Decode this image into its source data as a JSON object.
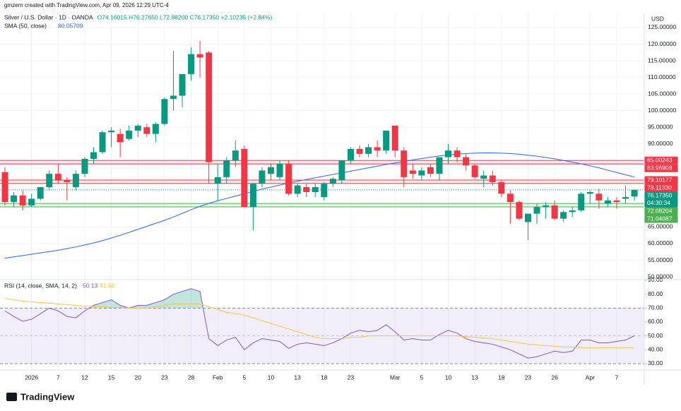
{
  "header": "gmzern created with TradingView.com, Apr 09, 2026 12:29 UTC-4",
  "currency": "USD",
  "logo": "TradingView",
  "chart_data": [
    {
      "type": "candlestick",
      "title": "Silver / U.S. Dollar · 1D · OANDA",
      "ohlc_text": "O74.16015 H76.27650 L72.88200 C76.17350 +2.10235 (+2.84%)",
      "categories": [
        null,
        null,
        null,
        "2026",
        null,
        null,
        "7",
        null,
        null,
        "12",
        null,
        null,
        "15",
        null,
        null,
        "20",
        null,
        null,
        "23",
        null,
        null,
        "28",
        null,
        null,
        "Feb",
        null,
        null,
        "5",
        null,
        null,
        "10",
        null,
        null,
        "13",
        null,
        null,
        "18",
        null,
        null,
        "23",
        null,
        null,
        null,
        null,
        "Mar",
        null,
        null,
        "5",
        null,
        null,
        "10",
        null,
        null,
        "13",
        null,
        null,
        "18",
        null,
        null,
        "23",
        null,
        null,
        "26",
        null,
        null,
        null,
        "Apr",
        null,
        null,
        "7",
        null,
        null
      ],
      "open": [
        81.5,
        72.5,
        74.5,
        71.5,
        73.5,
        77,
        81,
        79,
        77,
        81,
        85.5,
        87.5,
        93.5,
        93,
        91.5,
        94,
        95,
        93,
        96,
        103.5,
        104.5,
        111,
        117,
        117.5,
        78,
        80,
        85,
        88.5,
        71,
        78,
        81,
        80,
        84,
        75,
        77,
        75.5,
        74,
        78,
        79,
        85,
        88.5,
        87,
        89,
        88,
        95.5,
        88,
        82,
        80.5,
        83,
        81,
        86,
        88,
        86,
        83.5,
        79.5,
        80.5,
        78.5,
        75,
        72.5,
        66.5,
        69,
        71,
        71.5,
        67.5,
        69.5,
        70,
        75,
        75,
        72,
        73,
        73.5,
        74.16015
      ],
      "high": [
        83,
        75.5,
        76,
        75,
        77,
        82,
        84,
        80,
        82,
        86,
        89,
        94,
        95,
        94.5,
        95.5,
        96,
        96,
        96.5,
        104,
        118,
        111,
        119,
        121,
        118,
        84,
        86,
        91,
        89.5,
        78,
        83,
        84,
        85,
        85,
        78,
        78,
        78,
        78.5,
        80,
        85,
        89,
        89.5,
        90,
        91,
        94,
        95.5,
        89,
        84,
        83,
        84,
        86,
        90,
        89,
        87,
        84,
        82,
        82,
        79,
        76,
        73,
        69,
        72,
        72.5,
        73,
        70,
        71,
        75.5,
        76,
        76.5,
        74,
        74,
        77.5,
        76.2765
      ],
      "low": [
        71.5,
        71,
        70,
        71,
        73,
        76,
        78,
        73,
        76,
        80,
        84,
        87,
        89,
        86,
        91,
        92,
        92,
        90.5,
        95.5,
        100,
        101,
        109,
        110,
        78,
        73,
        78,
        83,
        71,
        64,
        77,
        79,
        79,
        74.5,
        74,
        74,
        74,
        73,
        77,
        78,
        84,
        86,
        86,
        86,
        87,
        86,
        77,
        79.5,
        79,
        80,
        79,
        84,
        84.5,
        82,
        79.5,
        77,
        77.5,
        74,
        66,
        67,
        61,
        66,
        67.5,
        67,
        66.5,
        68,
        69.5,
        72,
        70.5,
        71,
        70.5,
        72,
        72.882
      ],
      "close": [
        72.5,
        74.5,
        71.5,
        73.5,
        77,
        81,
        79,
        78.5,
        81,
        85.5,
        87.5,
        93.5,
        94,
        90.5,
        94,
        95.5,
        93,
        96,
        103.5,
        104.5,
        111,
        117,
        116,
        84.5,
        80,
        85,
        88,
        71,
        78,
        82,
        83,
        84,
        75,
        77.5,
        75.5,
        77,
        78,
        79.5,
        85,
        88.5,
        87,
        89,
        88,
        94,
        88,
        80,
        81,
        82,
        81,
        86,
        88,
        86,
        83.5,
        80,
        80.5,
        78.5,
        75,
        72.5,
        67.5,
        69,
        71,
        71.5,
        67.5,
        69.5,
        70,
        75,
        75.5,
        73,
        73,
        72.5,
        74,
        76.1735
      ],
      "up_color": "#089981",
      "down_color": "#f23645",
      "last_price_label": "76.17350",
      "countdown": "04:30:34",
      "sma": {
        "name": "SMA (50, close)",
        "color": "#2962ff",
        "values": [
          55.6,
          56.0,
          56.4,
          56.8,
          57.2,
          57.6,
          58.0,
          58.5,
          59.0,
          59.6,
          60.2,
          60.9,
          61.7,
          62.5,
          63.4,
          64.3,
          65.2,
          66.1,
          67.0,
          68.0,
          69.1,
          70.2,
          71.2,
          72.1,
          72.9,
          73.6,
          74.3,
          75.0,
          75.7,
          76.4,
          77.0,
          77.6,
          78.2,
          78.8,
          79.3,
          79.8,
          80.3,
          80.8,
          81.3,
          81.8,
          82.3,
          82.8,
          83.3,
          83.8,
          84.3,
          84.7,
          85.2,
          85.6,
          86.0,
          86.4,
          86.7,
          86.9,
          87.1,
          87.2,
          87.3,
          87.3,
          87.2,
          87.1,
          86.9,
          86.6,
          86.3,
          85.9,
          85.5,
          85.0,
          84.5,
          84.0,
          83.4,
          82.8,
          82.1,
          81.4,
          80.7,
          80.05709
        ]
      },
      "levels": [
        {
          "value": 85.00243,
          "label": "85.00243",
          "color": "#f23645"
        },
        {
          "value": 83.96908,
          "label": "83.96908",
          "color": "#f23645"
        },
        {
          "value": 79.10177,
          "label": "79.10177",
          "color": "#f23645"
        },
        {
          "value": 78.1133,
          "label": "78.11330",
          "color": "#f23645"
        },
        {
          "value": 72.08204,
          "label": "72.08204",
          "color": "#4caf50"
        },
        {
          "value": 71.04087,
          "label": "71.04087",
          "color": "#4caf50"
        }
      ],
      "ylim": [
        49.16,
        129.46
      ],
      "yticks": [
        {
          "value": 125,
          "label": "125.00000"
        },
        {
          "value": 120,
          "label": "120.00000"
        },
        {
          "value": 115,
          "label": "115.00000"
        },
        {
          "value": 110,
          "label": "110.00000"
        },
        {
          "value": 105,
          "label": "105.00000"
        },
        {
          "value": 100,
          "label": "100.00000"
        },
        {
          "value": 95,
          "label": "95.00000"
        },
        {
          "value": 90,
          "label": "90.00000"
        },
        {
          "value": 65,
          "label": "65.00000"
        },
        {
          "value": 60,
          "label": "60.00000"
        },
        {
          "value": 55,
          "label": "55.00000"
        },
        {
          "value": 50,
          "label": "50.00000"
        }
      ],
      "grid": true
    },
    {
      "type": "line",
      "title": "RSI (14, close, SMA, 14, 2)",
      "series": [
        {
          "color": "#7e57c2",
          "values": [
            68,
            64,
            60.5,
            62,
            66,
            70,
            68,
            64,
            63,
            68,
            72,
            74,
            76,
            72,
            70,
            72,
            72,
            74,
            76,
            80,
            82,
            84,
            82,
            48,
            43,
            47,
            49,
            40,
            45,
            48,
            47,
            46,
            41,
            44,
            45,
            44,
            43,
            45,
            48,
            52,
            54,
            53,
            54,
            58,
            53,
            47,
            48,
            47,
            47,
            51,
            54,
            52,
            48,
            46,
            45,
            44,
            42,
            40,
            37,
            34,
            35,
            37,
            39,
            38,
            39,
            47,
            47,
            45,
            45,
            46,
            47,
            50.13
          ]
        },
        {
          "color": "#f7c543",
          "values": [
            77,
            76,
            75,
            74.5,
            74,
            73.5,
            73,
            72.5,
            72,
            71.5,
            71,
            71,
            70.5,
            70.5,
            70,
            70,
            70,
            71,
            72,
            73,
            73,
            73,
            73,
            71,
            69,
            67,
            66,
            65,
            63,
            61,
            59,
            57,
            55,
            53,
            51,
            49,
            48,
            48,
            48,
            49,
            49,
            50,
            50,
            50,
            50,
            50,
            50,
            50,
            50,
            50,
            50,
            50,
            49.5,
            49,
            48.5,
            48,
            47,
            46,
            45,
            44,
            43.5,
            43,
            42.5,
            42,
            42,
            41.5,
            41.5,
            41.5,
            41.5,
            41.5,
            41.5,
            41.56
          ]
        }
      ],
      "bands": {
        "upper": 70,
        "middle": 50,
        "lower": 30
      },
      "band_fill": "rgba(126,87,194,0.1)",
      "overbought_fill": "rgba(8,153,129,0.25)",
      "ylim": [
        25.4,
        90.5
      ],
      "yticks": [
        {
          "value": 90,
          "label": "90.00"
        },
        {
          "value": 80,
          "label": "80.00"
        },
        {
          "value": 70,
          "label": "70.00"
        },
        {
          "value": 60,
          "label": "60.00"
        },
        {
          "value": 50,
          "label": "50.00"
        },
        {
          "value": 40,
          "label": "40.00"
        },
        {
          "value": 30,
          "label": "30.00"
        }
      ],
      "grid": true
    }
  ]
}
